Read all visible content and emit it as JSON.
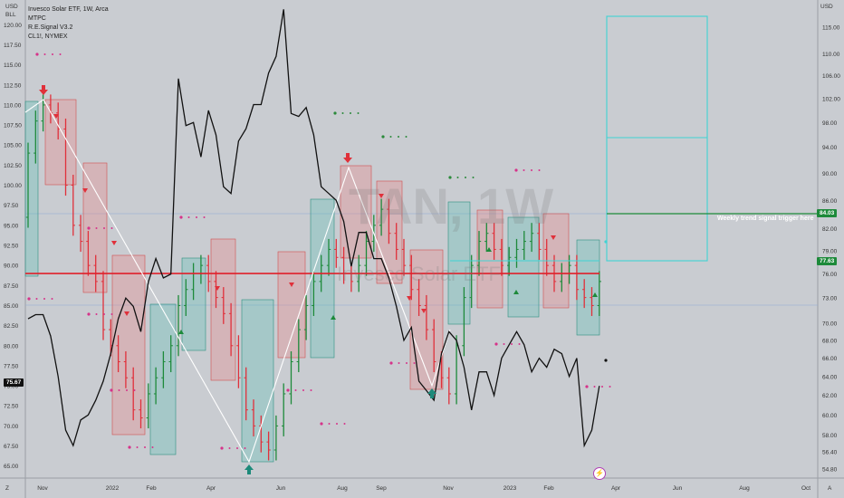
{
  "legend": {
    "title": "Invesco Solar ETF, 1W, Arca",
    "indicator1": "MTPC",
    "indicator2": "R.E.Signal V3.2",
    "indicator3": "CL1!, NYMEX"
  },
  "corner": {
    "left_top": "USD",
    "left_sub": "BLL",
    "right_top": "USD",
    "bottom_left": "Z",
    "bottom_right": "A"
  },
  "watermark": {
    "ticker": "TAN, 1W",
    "name": "Invesco Solar ETF"
  },
  "annotation": "Weekly trend signal trigger here",
  "price_tags": {
    "left": "75.67",
    "green": "84.03",
    "current": "77.63"
  },
  "colors": {
    "background": "#c9ccd1",
    "up": "#1d8a3a",
    "down": "#e0303a",
    "cyan": "#3fd4d4",
    "hline": "#e0202a",
    "oil": "#111111",
    "zigzag": "#ffffff",
    "signal_dots": "#d6338a"
  },
  "chart_data": {
    "type": "line",
    "left_axis": {
      "ticks": [
        "120.00",
        "117.50",
        "115.00",
        "112.50",
        "110.00",
        "107.50",
        "105.00",
        "102.50",
        "100.00",
        "97.50",
        "95.00",
        "92.50",
        "90.00",
        "87.50",
        "85.00",
        "82.50",
        "80.00",
        "77.50",
        "75.00",
        "72.50",
        "70.00",
        "67.50",
        "65.00"
      ],
      "range": [
        63.5,
        121.5
      ]
    },
    "right_axis": {
      "ticks": [
        "115.00",
        "110.00",
        "106.00",
        "102.00",
        "98.00",
        "94.00",
        "90.00",
        "86.00",
        "82.00",
        "79.00",
        "76.00",
        "73.00",
        "70.00",
        "68.00",
        "66.00",
        "64.00",
        "62.00",
        "60.00",
        "58.00",
        "56.40",
        "54.80"
      ],
      "scale": "log"
    },
    "x_ticks": [
      "Nov",
      "2022",
      "Feb",
      "Apr",
      "Jun",
      "Aug",
      "Sep",
      "Nov",
      "2023",
      "Feb",
      "Apr",
      "Jun",
      "Aug",
      "Oct"
    ],
    "horizontal_line": 89.0,
    "series": [
      {
        "name": "CL1!, NYMEX",
        "axis": "right",
        "values": [
          70.5,
          71.0,
          71.0,
          68.5,
          64.0,
          58.5,
          57.0,
          59.5,
          60.0,
          61.5,
          63.5,
          66.5,
          70.5,
          73.0,
          72.0,
          69.0,
          75.0,
          78.0,
          75.5,
          76.0,
          105.5,
          97.5,
          98.0,
          92.5,
          100.0,
          96.0,
          88.0,
          87.0,
          95.0,
          97.0,
          101.0,
          101.0,
          106.5,
          109.5,
          118.5,
          99.5,
          99.0,
          100.5,
          96.0,
          88.0,
          87.0,
          86.0,
          83.0,
          77.0,
          81.5,
          81.5,
          78.0,
          78.0,
          75.5,
          72.0,
          68.0,
          69.5,
          63.5,
          62.5,
          61.5,
          66.5,
          69.0,
          68.0,
          65.0,
          60.5,
          64.5,
          64.5,
          62.0,
          66.0,
          67.5,
          69.0,
          67.5,
          64.5,
          66.0,
          65.0,
          67.0,
          66.5,
          64.0,
          66.0,
          57.0,
          58.5,
          63.0
        ]
      }
    ]
  }
}
